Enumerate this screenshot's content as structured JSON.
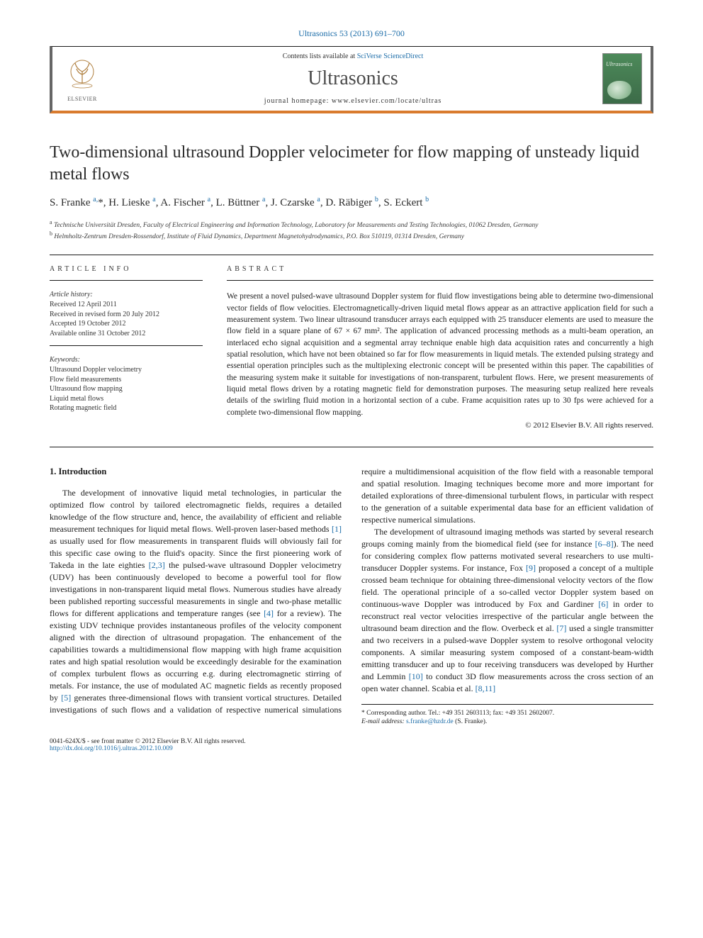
{
  "citation": "Ultrasonics 53 (2013) 691–700",
  "header": {
    "contents_prefix": "Contents lists available at ",
    "contents_link": "SciVerse ScienceDirect",
    "journal": "Ultrasonics",
    "homepage_label": "journal homepage: ",
    "homepage_url": "www.elsevier.com/locate/ultras",
    "publisher": "ELSEVIER",
    "cover_title": "Ultrasonics"
  },
  "title": "Two-dimensional ultrasound Doppler velocimeter for flow mapping of unsteady liquid metal flows",
  "authors_html": "S. Franke <sup>a,</sup>*, H. Lieske <sup>a</sup>, A. Fischer <sup>a</sup>, L. Büttner <sup>a</sup>, J. Czarske <sup>a</sup>, D. Räbiger <sup>b</sup>, S. Eckert <sup>b</sup>",
  "affiliations": {
    "a": "Technische Universität Dresden, Faculty of Electrical Engineering and Information Technology, Laboratory for Measurements and Testing Technologies, 01062 Dresden, Germany",
    "b": "Helmholtz-Zentrum Dresden-Rossendorf, Institute of Fluid Dynamics, Department Magnetohydrodynamics, P.O. Box 510119, 01314 Dresden, Germany"
  },
  "article_info": {
    "heading": "ARTICLE INFO",
    "history_label": "Article history:",
    "received": "Received 12 April 2011",
    "revised": "Received in revised form 20 July 2012",
    "accepted": "Accepted 19 October 2012",
    "online": "Available online 31 October 2012",
    "keywords_label": "Keywords:",
    "keywords": [
      "Ultrasound Doppler velocimetry",
      "Flow field measurements",
      "Ultrasound flow mapping",
      "Liquid metal flows",
      "Rotating magnetic field"
    ]
  },
  "abstract": {
    "heading": "ABSTRACT",
    "text": "We present a novel pulsed-wave ultrasound Doppler system for fluid flow investigations being able to determine two-dimensional vector fields of flow velocities. Electromagnetically-driven liquid metal flows appear as an attractive application field for such a measurement system. Two linear ultrasound transducer arrays each equipped with 25 transducer elements are used to measure the flow field in a square plane of 67 × 67 mm². The application of advanced processing methods as a multi-beam operation, an interlaced echo signal acquisition and a segmental array technique enable high data acquisition rates and concurrently a high spatial resolution, which have not been obtained so far for flow measurements in liquid metals. The extended pulsing strategy and essential operation principles such as the multiplexing electronic concept will be presented within this paper. The capabilities of the measuring system make it suitable for investigations of non-transparent, turbulent flows. Here, we present measurements of liquid metal flows driven by a rotating magnetic field for demonstration purposes. The measuring setup realized here reveals details of the swirling fluid motion in a horizontal section of a cube. Frame acquisition rates up to 30 fps were achieved for a complete two-dimensional flow mapping.",
    "copyright": "© 2012 Elsevier B.V. All rights reserved."
  },
  "intro": {
    "heading": "1. Introduction",
    "p1_a": "The development of innovative liquid metal technologies, in particular the optimized flow control by tailored electromagnetic fields, requires a detailed knowledge of the flow structure and, hence, the availability of efficient and reliable measurement techniques for liquid metal flows. Well-proven laser-based methods ",
    "r1": "[1]",
    "p1_b": " as usually used for flow measurements in transparent fluids will obviously fail for this specific case owing to the fluid's opacity. Since the first pioneering work of Takeda in the late eighties ",
    "r23": "[2,3]",
    "p1_c": " the pulsed-wave ultrasound Doppler velocimetry (UDV) has been continuously developed to become a powerful tool for flow investigations in non-transparent liquid metal flows. Numerous studies have already been published reporting successful measurements in single and two-phase metallic flows for different applications and temperature ranges (see ",
    "r4": "[4]",
    "p1_d": " for a review). The existing UDV technique provides instantaneous profiles of the velocity component aligned with the direction of ultrasound propagation. The enhancement of the capabilities towards a multidimensional flow mapping with high frame acquisition rates and high spatial resolution would be exceedingly desirable for the examination of complex turbulent flows as occurring e.g. during electromagnetic stirring of metals. For instance, the use of modulated AC magnetic fields as recently ",
    "p2_a": "proposed by ",
    "r5": "[5]",
    "p2_b": " generates three-dimensional flows with transient vortical structures. Detailed investigations of such flows and a validation of respective numerical simulations require a multidimensional acquisition of the flow field with a reasonable temporal and spatial resolution. Imaging techniques become more and more important for detailed explorations of three-dimensional turbulent flows, in particular with respect to the generation of a suitable experimental data base for an efficient validation of respective numerical simulations.",
    "p3_a": "The development of ultrasound imaging methods was started by several research groups coming mainly from the biomedical field (see for instance ",
    "r68": "[6–8]",
    "p3_b": "). The need for considering complex flow patterns motivated several researchers to use multi-transducer Doppler systems. For instance, Fox ",
    "r9": "[9]",
    "p3_c": " proposed a concept of a multiple crossed beam technique for obtaining three-dimensional velocity vectors of the flow field. The operational principle of a so-called vector Doppler system based on continuous-wave Doppler was introduced by Fox and Gardiner ",
    "r6": "[6]",
    "p3_d": " in order to reconstruct real vector velocities irrespective of the particular angle between the ultrasound beam direction and the flow. Overbeck et al. ",
    "r7": "[7]",
    "p3_e": " used a single transmitter and two receivers in a pulsed-wave Doppler system to resolve orthogonal velocity components. A similar measuring system composed of a constant-beam-width emitting transducer and up to four receiving transducers was developed by Hurther and Lemmin ",
    "r10": "[10]",
    "p3_f": " to conduct 3D flow measurements across the cross section of an open water channel. Scabia et al. ",
    "r811": "[8,11]"
  },
  "footnote": {
    "corr": "* Corresponding author. Tel.: +49 351 2603113; fax: +49 351 2602007.",
    "email_lbl": "E-mail address: ",
    "email": "s.franke@hzdr.de",
    "email_suffix": " (S. Franke)."
  },
  "bottom": {
    "left": "0041-624X/$ - see front matter © 2012 Elsevier B.V. All rights reserved.",
    "doi_label": "http://dx.doi.org/",
    "doi": "10.1016/j.ultras.2012.10.009"
  },
  "colors": {
    "link": "#1b6ca8",
    "accent": "#d97b2e",
    "cover_bg": "#4d8a5a"
  }
}
